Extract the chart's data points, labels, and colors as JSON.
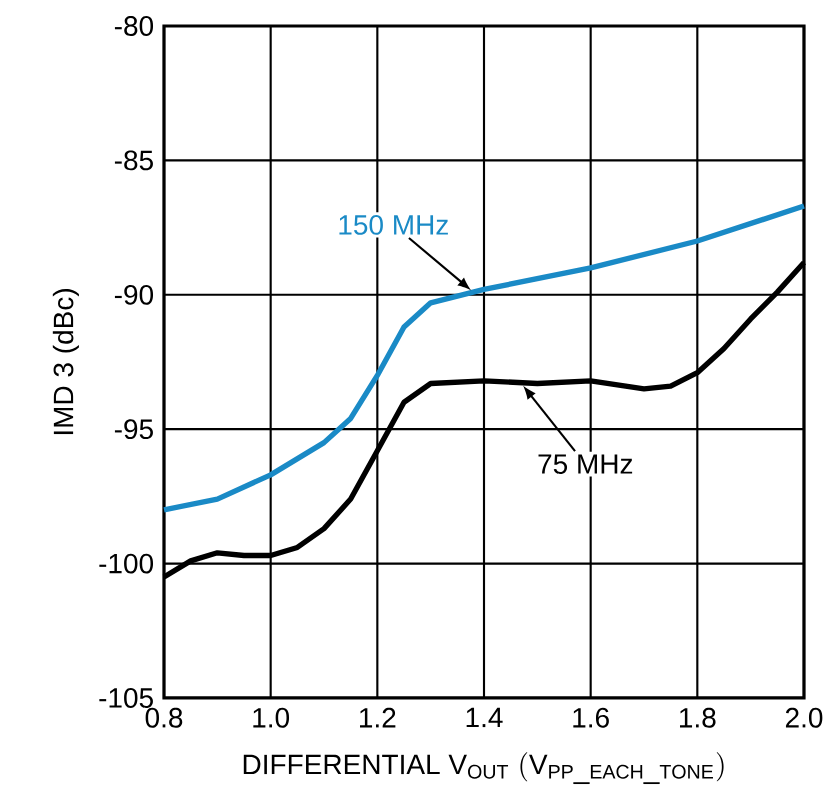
{
  "chart_data": {
    "type": "line",
    "xlabel": "\\mathrm{DIFFERENTIAL\\ V_{OUT}\\ (V_{PP\\_EACH\\_TONE})}",
    "ylabel": "IMD 3 (dBc)",
    "xlim": [
      0.8,
      2.0
    ],
    "xticks": [
      0.8,
      {
        "value": 1.0,
        "label": "1.0"
      },
      1.2,
      1.4,
      1.6,
      1.8,
      {
        "value": 2.0,
        "label": "2.0"
      }
    ],
    "ylim": [
      -105,
      -80
    ],
    "yticks": [
      -105,
      -100,
      -95,
      -90,
      -85,
      -80
    ],
    "grid": true,
    "series": [
      {
        "color": "#1a8ac6",
        "x": [
          0.8,
          0.9,
          1.0,
          1.1,
          1.15,
          1.2,
          1.25,
          1.3,
          1.4,
          1.6,
          1.8,
          2.0
        ],
        "values": [
          -98.0,
          -97.6,
          -96.7,
          -95.5,
          -94.6,
          -93.0,
          -91.2,
          -90.3,
          -89.8,
          -89.0,
          -88.0,
          -86.7
        ]
      },
      {
        "color": "#000000",
        "x": [
          0.8,
          0.85,
          0.9,
          0.95,
          1.0,
          1.05,
          1.1,
          1.15,
          1.2,
          1.25,
          1.3,
          1.4,
          1.5,
          1.6,
          1.7,
          1.75,
          1.8,
          1.85,
          1.9,
          1.95,
          2.0
        ],
        "values": [
          -100.5,
          -99.9,
          -99.6,
          -99.7,
          -99.7,
          -99.4,
          -98.7,
          -97.6,
          -95.8,
          -94.0,
          -93.3,
          -93.2,
          -93.3,
          -93.2,
          -93.5,
          -93.4,
          -92.9,
          -92.0,
          -90.9,
          -89.9,
          -88.8
        ]
      }
    ],
    "annotations": [
      {
        "text": "150 MHz",
        "x": 1.38,
        "y": -89.9
      },
      {
        "text": "75 MHz",
        "x": 1.47,
        "y": -93.3
      }
    ]
  }
}
